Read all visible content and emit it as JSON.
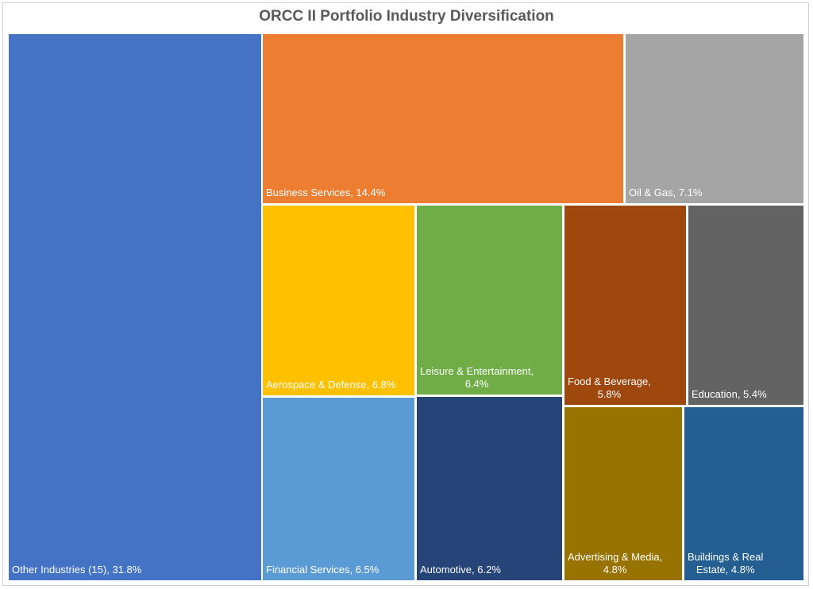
{
  "chart_data": {
    "type": "treemap",
    "title": "ORCC II Portfolio Industry Diversification",
    "items": [
      {
        "name": "Other Industries (15)",
        "value": 31.8,
        "label": "Other Industries (15), 31.8%",
        "color": "#4472C4"
      },
      {
        "name": "Business Services",
        "value": 14.4,
        "label": "Business Services, 14.4%",
        "color": "#ED7D31"
      },
      {
        "name": "Oil & Gas",
        "value": 7.1,
        "label": "Oil & Gas, 7.1%",
        "color": "#A5A5A5"
      },
      {
        "name": "Aerospace & Defense",
        "value": 6.8,
        "label": "Aerospace & Defense, 6.8%",
        "color": "#FFC000"
      },
      {
        "name": "Financial Services",
        "value": 6.5,
        "label": "Financial Services, 6.5%",
        "color": "#5B9BD5"
      },
      {
        "name": "Leisure & Entertainment",
        "value": 6.4,
        "label_lines": [
          "Leisure & Entertainment,",
          "6.4%"
        ],
        "color": "#70AD47"
      },
      {
        "name": "Automotive",
        "value": 6.2,
        "label": "Automotive, 6.2%",
        "color": "#264478"
      },
      {
        "name": "Food & Beverage",
        "value": 5.8,
        "label_lines": [
          "Food & Beverage,",
          "5.8%"
        ],
        "color": "#9E480E"
      },
      {
        "name": "Education",
        "value": 5.4,
        "label": "Education, 5.4%",
        "color": "#636363"
      },
      {
        "name": "Advertising & Media",
        "value": 4.8,
        "label_lines": [
          "Advertising & Media,",
          "4.8%"
        ],
        "color": "#997300"
      },
      {
        "name": "Buildings & Real Estate",
        "value": 4.8,
        "label_lines": [
          "Buildings & Real",
          "Estate, 4.8%"
        ],
        "color": "#255E91"
      }
    ]
  }
}
